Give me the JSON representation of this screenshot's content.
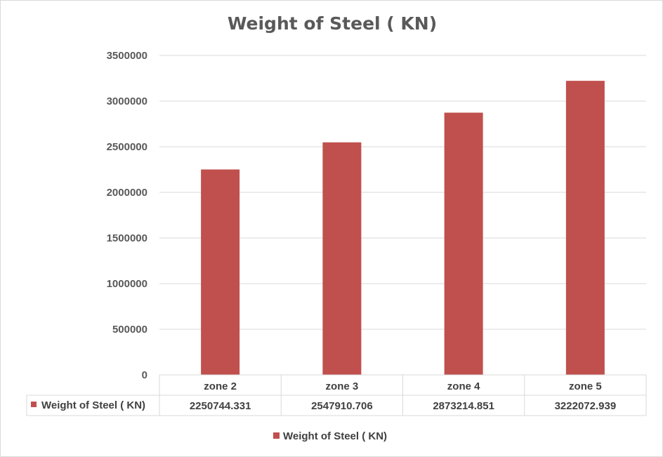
{
  "chart_data": {
    "type": "bar",
    "title": "Weight of Steel ( KN)",
    "categories": [
      "zone 2",
      "zone 3",
      "zone 4",
      "zone 5"
    ],
    "series": [
      {
        "name": "Weight of Steel ( KN)",
        "values": [
          2250744.331,
          2547910.706,
          2873214.851,
          3222072.939
        ],
        "value_labels": [
          "2250744.331",
          "2547910.706",
          "2873214.851",
          "3222072.939"
        ],
        "color": "#c0504d"
      }
    ],
    "y_ticks": [
      "0",
      "500000",
      "1000000",
      "1500000",
      "2000000",
      "2500000",
      "3000000",
      "3500000"
    ],
    "ylim": [
      0,
      3500000
    ],
    "grid": true,
    "data_table": true,
    "legend_position": "bottom",
    "legend_label": "Weight of Steel ( KN)",
    "colors": {
      "bar": "#c0504d",
      "grid": "#d9d9d9",
      "text": "#595959"
    }
  }
}
